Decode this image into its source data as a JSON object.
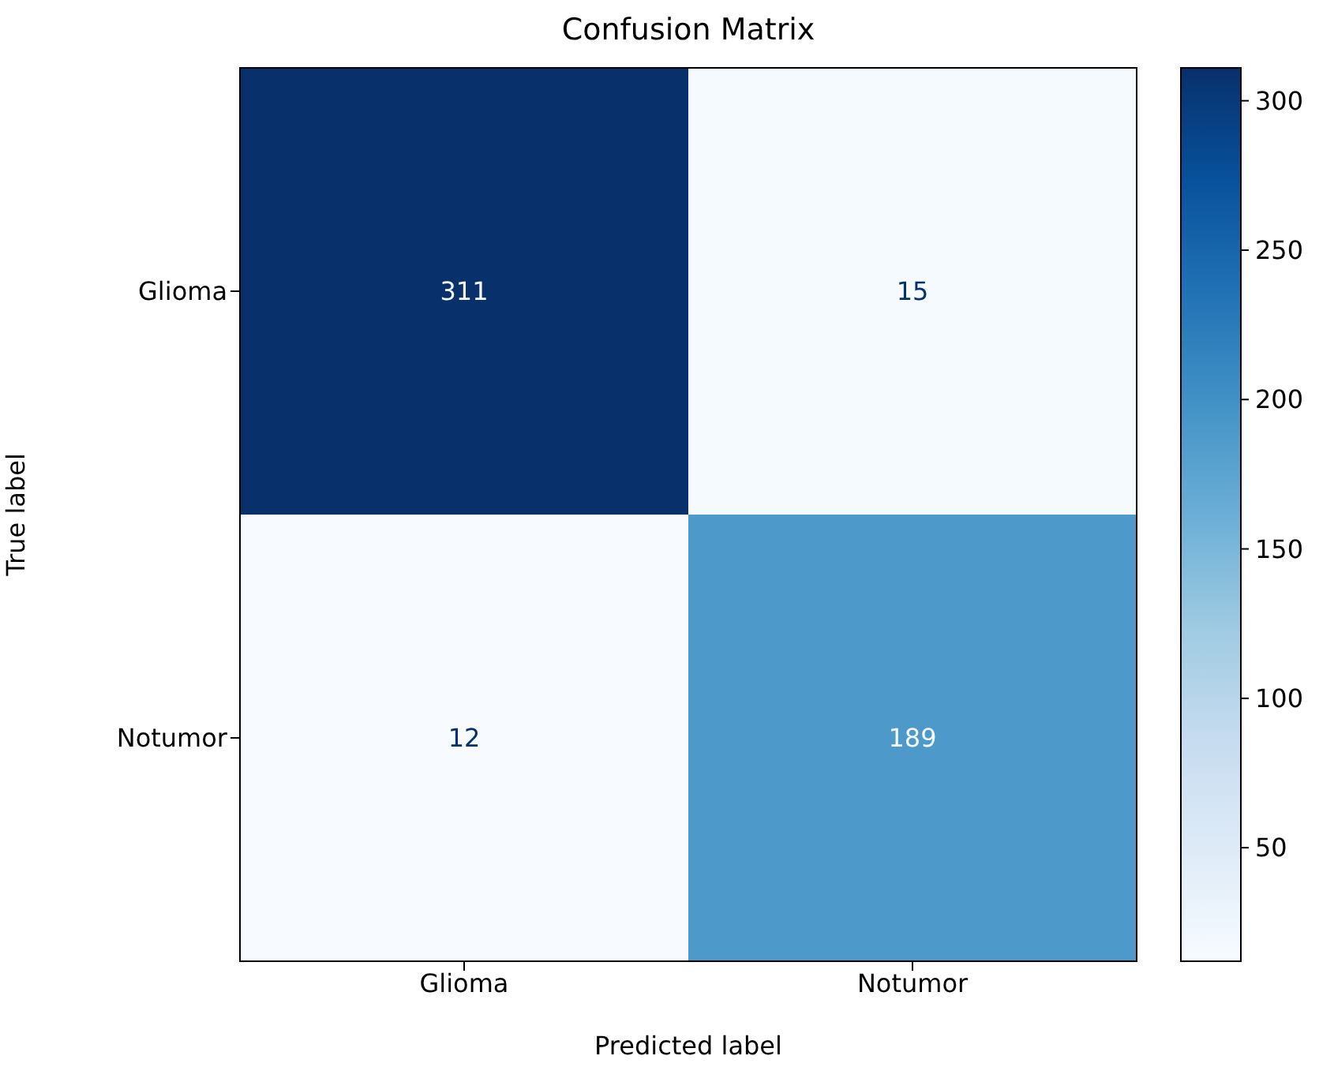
{
  "chart_data": {
    "type": "heatmap",
    "title": "Confusion Matrix",
    "xlabel": "Predicted label",
    "ylabel": "True label",
    "categories": [
      "Glioma",
      "Notumor"
    ],
    "y_categories": [
      "Glioma",
      "Notumor"
    ],
    "cells": [
      [
        311,
        15
      ],
      [
        12,
        189
      ]
    ],
    "clim": [
      12,
      311
    ],
    "cticks": [
      50,
      100,
      150,
      200,
      250,
      300
    ],
    "data_labels": true
  }
}
